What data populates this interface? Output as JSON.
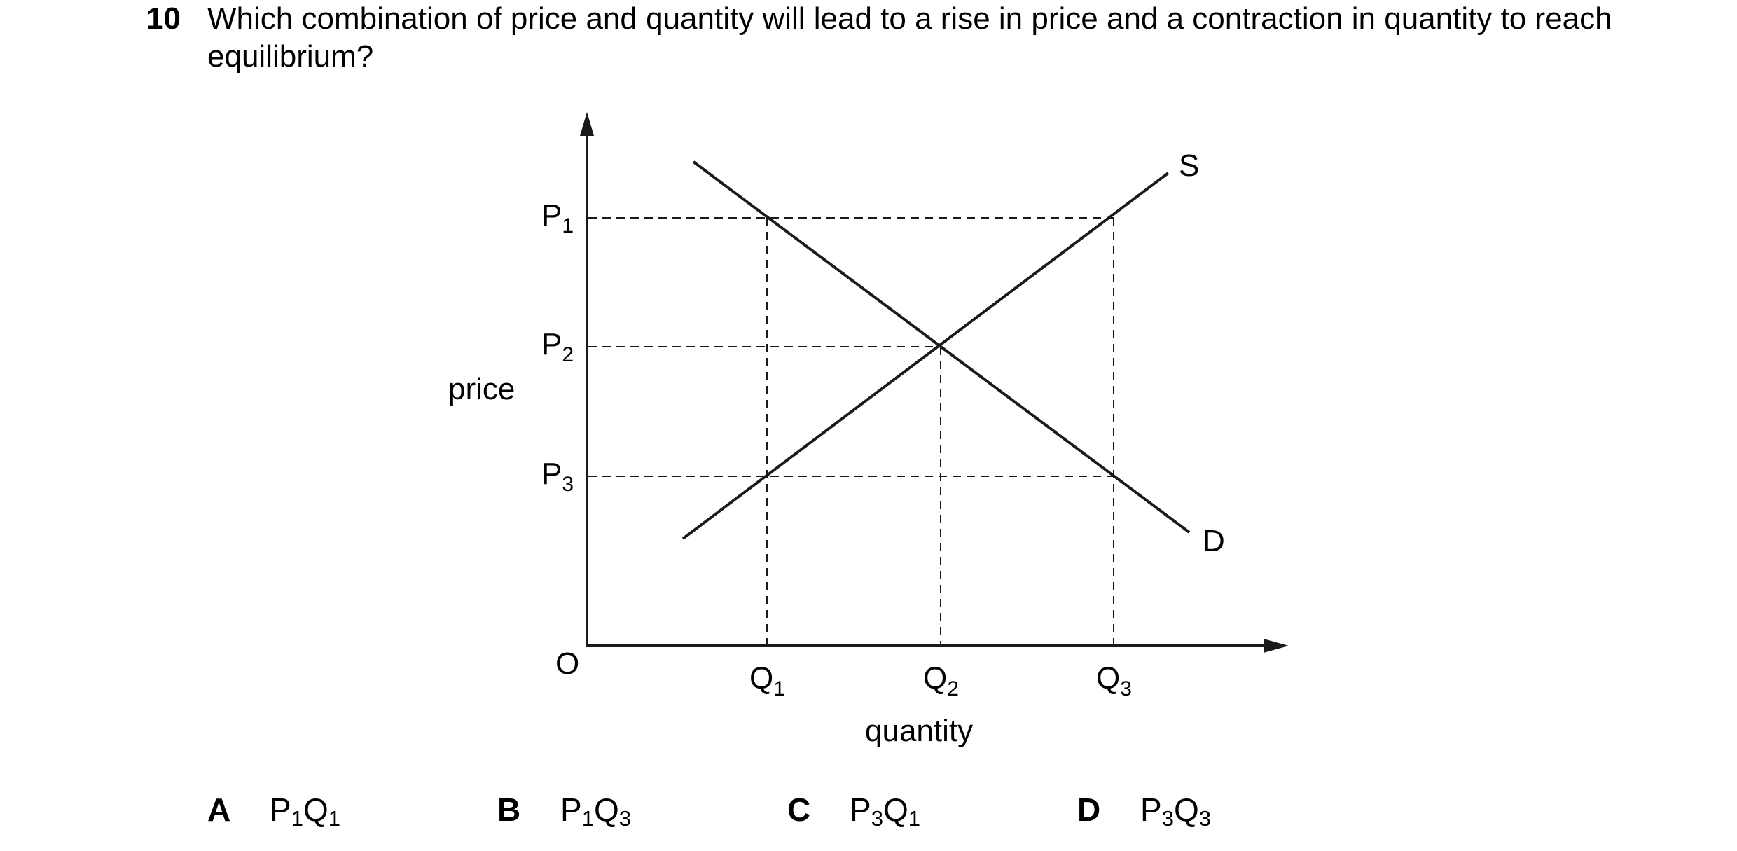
{
  "question": {
    "number": "10",
    "text": "Which combination of price and quantity will lead to a rise in price and a contraction in quantity to reach equilibrium?"
  },
  "diagram": {
    "y_axis_label": "price",
    "x_axis_label": "quantity",
    "origin_label": "O",
    "supply_label": "S",
    "demand_label": "D",
    "price_levels": [
      {
        "base": "P",
        "sub": "1"
      },
      {
        "base": "P",
        "sub": "2"
      },
      {
        "base": "P",
        "sub": "3"
      }
    ],
    "quantity_levels": [
      {
        "base": "Q",
        "sub": "1"
      },
      {
        "base": "Q",
        "sub": "2"
      },
      {
        "base": "Q",
        "sub": "3"
      }
    ]
  },
  "options": [
    {
      "letter": "A",
      "p": "P",
      "p_sub": "1",
      "q": "Q",
      "q_sub": "1"
    },
    {
      "letter": "B",
      "p": "P",
      "p_sub": "1",
      "q": "Q",
      "q_sub": "3"
    },
    {
      "letter": "C",
      "p": "P",
      "p_sub": "3",
      "q": "Q",
      "q_sub": "1"
    },
    {
      "letter": "D",
      "p": "P",
      "p_sub": "3",
      "q": "Q",
      "q_sub": "3"
    }
  ]
}
